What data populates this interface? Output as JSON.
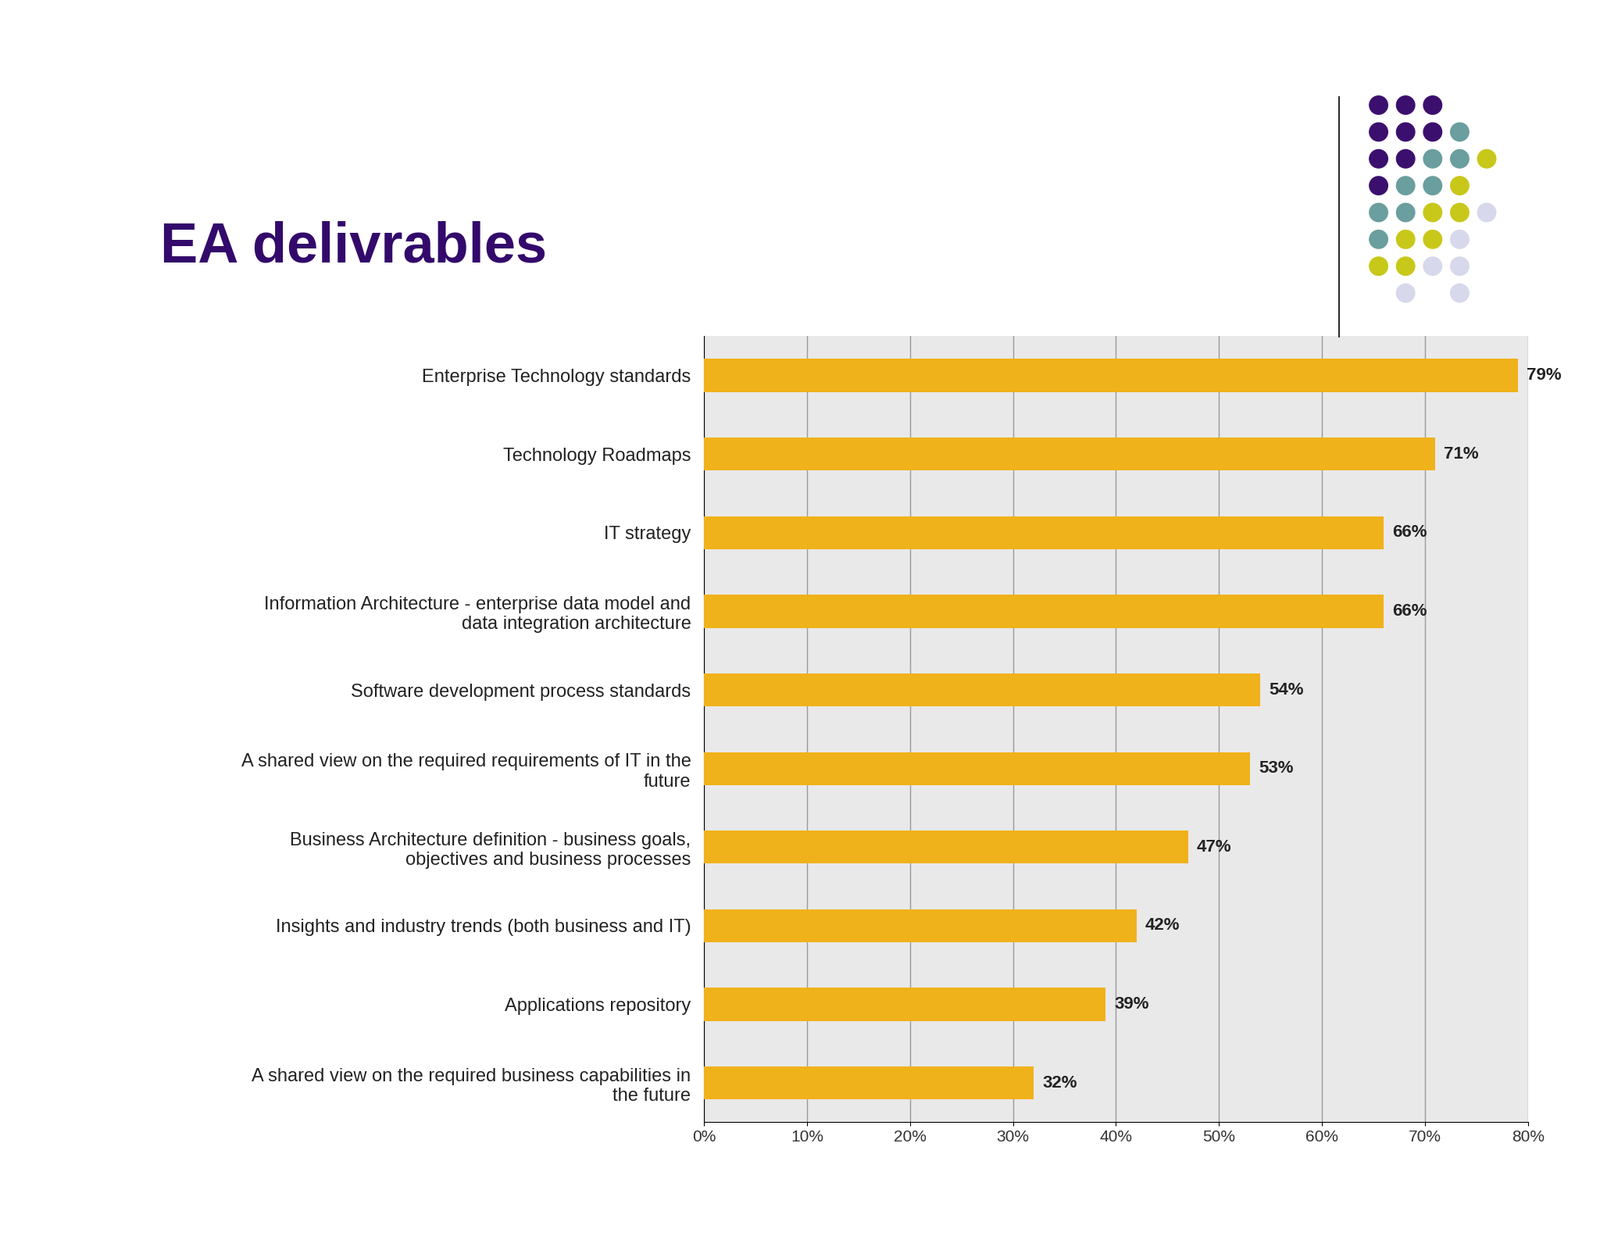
{
  "chart_data": {
    "type": "bar",
    "title": "EA delivrables",
    "orientation": "horizontal",
    "categories": [
      "Enterprise Technology standards",
      "Technology Roadmaps",
      "IT strategy",
      "Information Architecture - enterprise data model and data integration architecture",
      "Software development process standards",
      "A shared view on the required requirements of IT in the future",
      "Business Architecture definition - business goals, objectives and business processes",
      "Insights and industry trends (both business and IT)",
      "Applications repository",
      "A shared view on the required business capabilities in the future"
    ],
    "values": [
      79,
      71,
      66,
      66,
      54,
      53,
      47,
      42,
      39,
      32
    ],
    "value_labels": [
      "79%",
      "71%",
      "66%",
      "66%",
      "54%",
      "53%",
      "47%",
      "42%",
      "39%",
      "32%"
    ],
    "data_labels": true,
    "color": "#f0b21a",
    "xlim": [
      0,
      80
    ],
    "xticks": [
      {
        "value": 0,
        "label": "0%"
      },
      {
        "value": 10,
        "label": "10%"
      },
      {
        "value": 20,
        "label": "20%"
      },
      {
        "value": 30,
        "label": "30%"
      },
      {
        "value": 40,
        "label": "40%"
      },
      {
        "value": 50,
        "label": "50%"
      },
      {
        "value": 60,
        "label": "60%"
      },
      {
        "value": 70,
        "label": "70%"
      },
      {
        "value": 80,
        "label": "80%"
      }
    ],
    "grid": true
  }
}
